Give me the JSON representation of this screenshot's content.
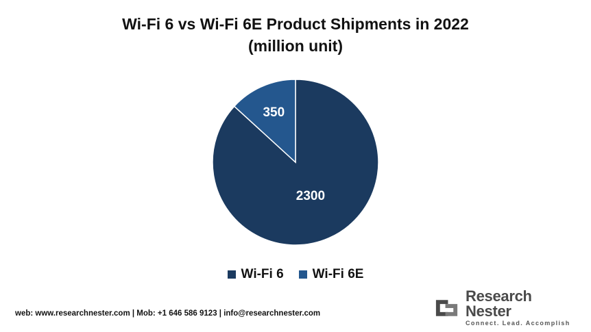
{
  "chart": {
    "title_line1": "Wi-Fi 6 vs Wi-Fi 6E Product Shipments in 2022",
    "title_line2": "(million unit)"
  },
  "chart_data": {
    "type": "pie",
    "title": "Wi-Fi 6 vs Wi-Fi 6E Product Shipments in 2022 (million unit)",
    "categories": [
      "Wi-Fi 6",
      "Wi-Fi 6E"
    ],
    "values": [
      2300,
      350
    ],
    "colors": [
      "#1b3a5f",
      "#24578e"
    ],
    "data_labels": [
      "2300",
      "350"
    ],
    "legend_position": "bottom"
  },
  "legend": {
    "items": [
      {
        "label": "Wi-Fi 6",
        "color": "#1b3a5f"
      },
      {
        "label": "Wi-Fi 6E",
        "color": "#24578e"
      }
    ]
  },
  "footer": {
    "contact": "web: www.researchnester.com | Mob: +1 646 586 9123 | info@researchnester.com",
    "logo_name": "Research Nester",
    "logo_tagline": "Connect. Lead. Accomplish"
  }
}
